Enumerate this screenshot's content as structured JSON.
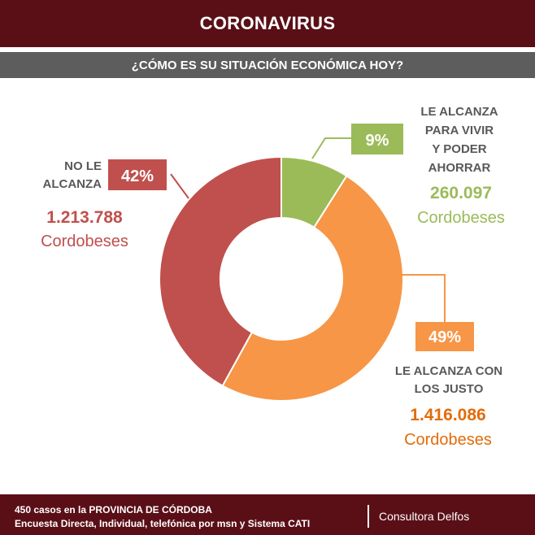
{
  "header": {
    "title": "CORONAVIRUS"
  },
  "subheader": {
    "title": "¿CÓMO ES SU SITUACIÓN ECONÓMICA HOY?"
  },
  "chart_data": {
    "type": "pie",
    "donut": true,
    "slices": [
      {
        "label_lines": [
          "LE ALCANZA",
          "PARA VIVIR",
          "Y PODER",
          "AHORRAR"
        ],
        "value": 9,
        "pct_label": "9%",
        "count": "260.097",
        "unit": "Cordobeses",
        "color": "#9bbb59"
      },
      {
        "label_lines": [
          "LE ALCANZA CON",
          "LOS JUSTO"
        ],
        "value": 49,
        "pct_label": "49%",
        "count": "1.416.086",
        "unit": "Cordobeses",
        "color": "#f79646"
      },
      {
        "label_lines": [
          "NO LE",
          "ALCANZA"
        ],
        "value": 42,
        "pct_label": "42%",
        "count": "1.213.788",
        "unit": "Cordobeses",
        "color": "#c0504d"
      }
    ]
  },
  "footer": {
    "line1": "450  casos en la PROVINCIA DE CÓRDOBA",
    "line2": "Encuesta Directa, Individual, telefónica por msn y Sistema CATI",
    "brand": "Consultora Delfos"
  }
}
